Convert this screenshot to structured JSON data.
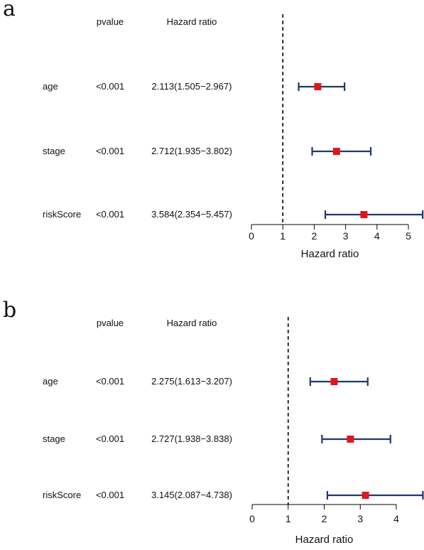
{
  "chart_data": [
    {
      "type": "forest",
      "panel_label": "a",
      "headers": {
        "pvalue": "pvalue",
        "hr": "Hazard ratio"
      },
      "xlabel": "Hazard ratio",
      "xticks": [
        0,
        1,
        2,
        3,
        4,
        5
      ],
      "xlim": [
        0,
        5
      ],
      "reference_line": 1,
      "rows": [
        {
          "name": "age",
          "pvalue": "<0.001",
          "hr_text": "2.113(1.505−2.967)",
          "hr": 2.113,
          "lo": 1.505,
          "hi": 2.967
        },
        {
          "name": "stage",
          "pvalue": "<0.001",
          "hr_text": "2.712(1.935−3.802)",
          "hr": 2.712,
          "lo": 1.935,
          "hi": 3.802
        },
        {
          "name": "riskScore",
          "pvalue": "<0.001",
          "hr_text": "3.584(2.354−5.457)",
          "hr": 3.584,
          "lo": 2.354,
          "hi": 5.457
        }
      ]
    },
    {
      "type": "forest",
      "panel_label": "b",
      "headers": {
        "pvalue": "pvalue",
        "hr": "Hazard ratio"
      },
      "xlabel": "Hazard ratio",
      "xticks": [
        0,
        1,
        2,
        3,
        4
      ],
      "xlim": [
        0,
        4
      ],
      "reference_line": 1,
      "rows": [
        {
          "name": "age",
          "pvalue": "<0.001",
          "hr_text": "2.275(1.613−3.207)",
          "hr": 2.275,
          "lo": 1.613,
          "hi": 3.207
        },
        {
          "name": "stage",
          "pvalue": "<0.001",
          "hr_text": "2.727(1.938−3.838)",
          "hr": 2.727,
          "lo": 1.938,
          "hi": 3.838
        },
        {
          "name": "riskScore",
          "pvalue": "<0.001",
          "hr_text": "3.145(2.087−4.738)",
          "hr": 3.145,
          "lo": 2.087,
          "hi": 4.738
        }
      ]
    }
  ],
  "colors": {
    "point": "#e0161d",
    "ci": "#1f3870",
    "axis": "#000000"
  }
}
